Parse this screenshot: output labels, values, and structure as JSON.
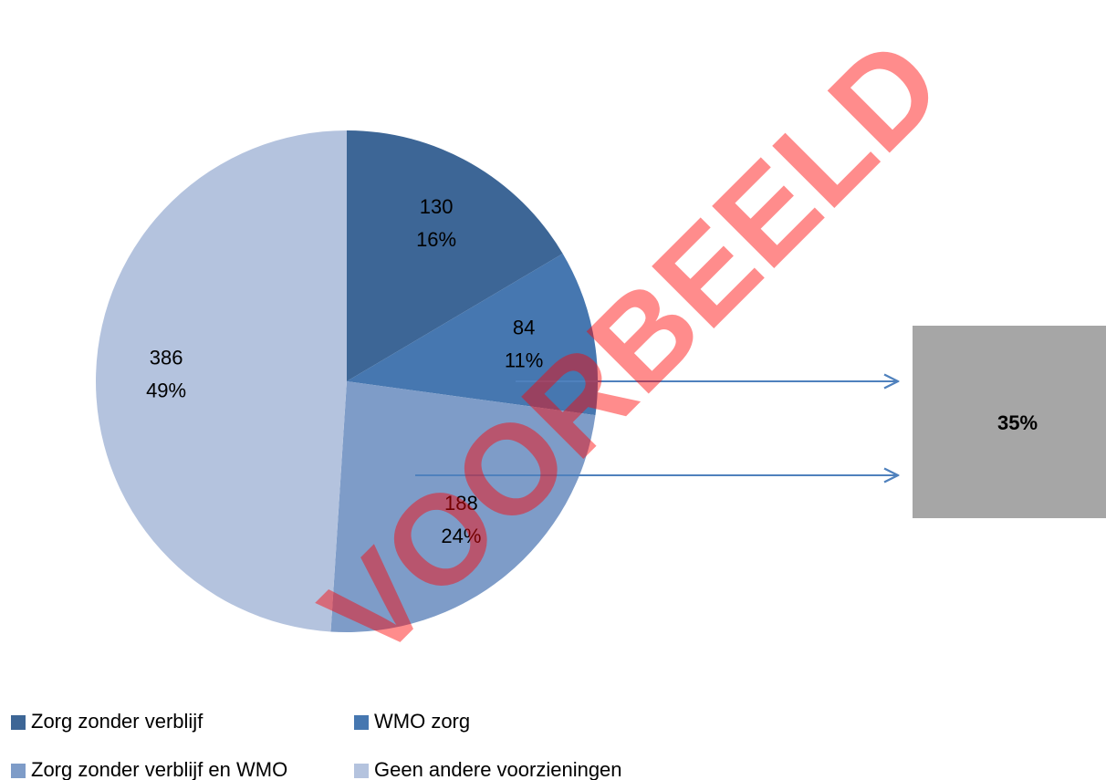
{
  "chart_data": {
    "type": "pie",
    "categories": [
      "Zorg zonder verblijf",
      "WMO zorg",
      "Zorg zonder verblijf en WMO",
      "Geen andere voorzieningen"
    ],
    "values": [
      130,
      84,
      188,
      386
    ],
    "percent_labels": [
      "16%",
      "11%",
      "24%",
      "49%"
    ],
    "colors": [
      "#3d6696",
      "#4677b0",
      "#7e9cc8",
      "#b4c3de"
    ],
    "annotation": "35%",
    "watermark": "VOORBEELD"
  }
}
